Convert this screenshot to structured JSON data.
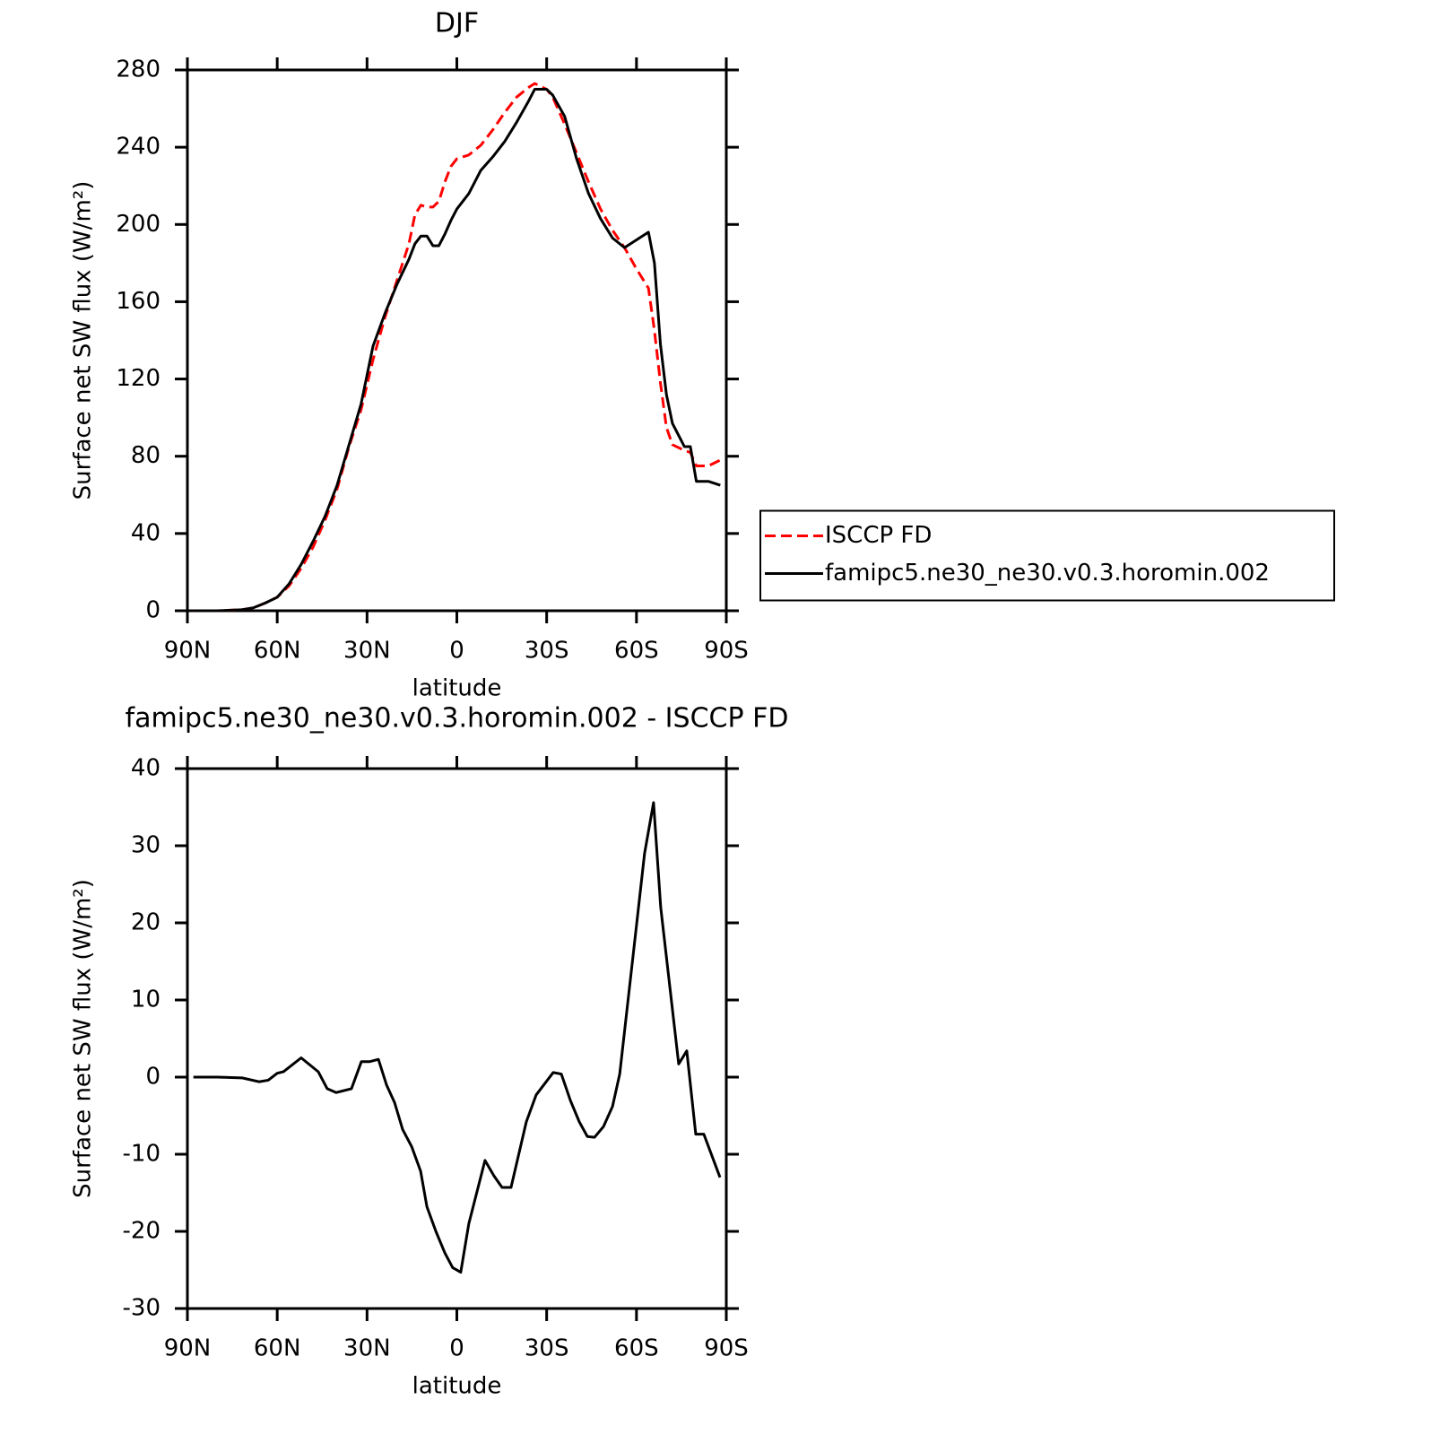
{
  "chart_data": [
    {
      "type": "line",
      "title": "DJF",
      "x_label": "latitude",
      "y_label": "Surface net SW flux (W/m²)",
      "xlim": [
        90,
        -90
      ],
      "xticks": [
        {
          "value": 90,
          "label": "90N"
        },
        {
          "value": 60,
          "label": "60N"
        },
        {
          "value": 30,
          "label": "30N"
        },
        0,
        {
          "value": -30,
          "label": "30S"
        },
        {
          "value": -60,
          "label": "60S"
        },
        {
          "value": -90,
          "label": "90S"
        }
      ],
      "ylim": [
        0,
        280
      ],
      "yticks": [
        0,
        40,
        80,
        120,
        160,
        200,
        240,
        280
      ],
      "legend": "right",
      "x": [
        88,
        80,
        72,
        68,
        64,
        60,
        56,
        52,
        48,
        44,
        40,
        36,
        32,
        28,
        24,
        20,
        16,
        14,
        12,
        10,
        8,
        6,
        4,
        2,
        0,
        -4,
        -8,
        -12,
        -16,
        -20,
        -24,
        -26,
        -30,
        -32,
        -36,
        -40,
        -44,
        -48,
        -52,
        -56,
        -60,
        -64,
        -66,
        -68,
        -70,
        -72,
        -76,
        -78,
        -80,
        -84,
        -88
      ],
      "series": [
        {
          "name": "ISCCP FD",
          "color": "#ff0000",
          "line_style": "dashed",
          "values": [
            0,
            0,
            0.5,
            1.5,
            4,
            7,
            13,
            22,
            33,
            47,
            63,
            85,
            104,
            130,
            152,
            171,
            190,
            205,
            210,
            209,
            209,
            212,
            222,
            230,
            234,
            236,
            241,
            249,
            258,
            266,
            271,
            273,
            270,
            266,
            252,
            237,
            222,
            208,
            197,
            188,
            177,
            167,
            145,
            118,
            95,
            86,
            83,
            82,
            75,
            75,
            78
          ]
        },
        {
          "name": "famipc5.ne30_ne30.v0.3.horomin.002",
          "color": "#000000",
          "line_style": "solid",
          "values": [
            0,
            0,
            0.5,
            1.5,
            4,
            7,
            14,
            24,
            36,
            49,
            65,
            86,
            107,
            137,
            154,
            169,
            182,
            190,
            194,
            194,
            189,
            189,
            195,
            202,
            208,
            216,
            228,
            235,
            243,
            253,
            264,
            270,
            270,
            267,
            256,
            234,
            216,
            203,
            193,
            188,
            192,
            196,
            180,
            138,
            112,
            97,
            85,
            85,
            67,
            67,
            65
          ]
        }
      ]
    },
    {
      "type": "line",
      "title": "famipc5.ne30_ne30.v0.3.horomin.002 - ISCCP FD",
      "x_label": "latitude",
      "y_label": "Surface net SW flux (W/m²)",
      "xlim": [
        90,
        -90
      ],
      "xticks": [
        {
          "value": 90,
          "label": "90N"
        },
        {
          "value": 60,
          "label": "60N"
        },
        {
          "value": 30,
          "label": "30N"
        },
        0,
        {
          "value": -30,
          "label": "30S"
        },
        {
          "value": -60,
          "label": "60S"
        },
        {
          "value": -90,
          "label": "90S"
        }
      ],
      "ylim": [
        -30,
        40
      ],
      "yticks": [
        -30,
        -20,
        -10,
        0,
        10,
        20,
        30,
        40
      ],
      "x": [
        88,
        80,
        71.7,
        66,
        63,
        60,
        57.9,
        52,
        46.3,
        43.3,
        40.3,
        35.2,
        31.9,
        29.2,
        26.2,
        23.5,
        20.8,
        18.1,
        15.1,
        12.1,
        10,
        7,
        4,
        1.4,
        -1.3,
        -4,
        -9.4,
        -12.4,
        -15.1,
        -18.1,
        -23.2,
        -26.5,
        -32.2,
        -34.9,
        -37.9,
        -40.9,
        -43.6,
        -46,
        -49,
        -52,
        -54.4,
        -60.1,
        -62.7,
        -65.7,
        -68.1,
        -74.1,
        -76.8,
        -79.8,
        -82.5,
        -87.9
      ],
      "series": [
        {
          "color": "#000000",
          "line_style": "solid",
          "values": [
            0,
            0,
            -0.1,
            -0.6,
            -0.4,
            0.5,
            0.7,
            2.5,
            0.7,
            -1.5,
            -2,
            -1.5,
            2,
            2,
            2.3,
            -1,
            -3.3,
            -6.8,
            -9,
            -12.2,
            -16.8,
            -20,
            -22.8,
            -24.7,
            -25.3,
            -19,
            -10.8,
            -12.8,
            -14.3,
            -14.3,
            -5.8,
            -2.3,
            0.6,
            0.4,
            -3,
            -5.8,
            -7.7,
            -7.8,
            -6.4,
            -3.8,
            0.4,
            20,
            29,
            35.6,
            22,
            1.7,
            3.4,
            -7.4,
            -7.4,
            -13
          ]
        }
      ]
    }
  ]
}
